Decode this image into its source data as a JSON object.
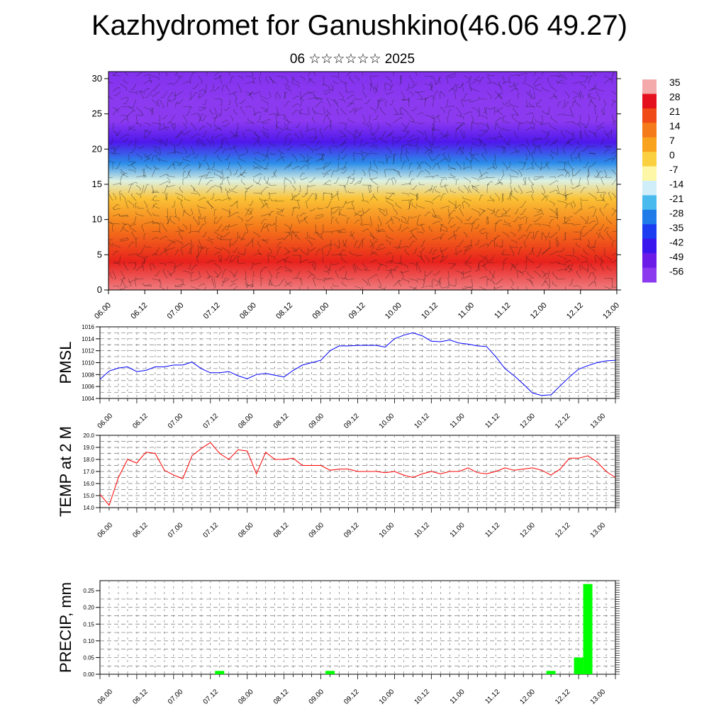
{
  "title": "Kazhydromet for Ganushkino(46.06 49.27)",
  "subtitle": "06 ☆☆☆☆☆☆ 2025",
  "time_labels": [
    "06.00",
    "06.12",
    "07.00",
    "07.12",
    "08.00",
    "08.12",
    "09.00",
    "09.12",
    "10.00",
    "10.12",
    "11.00",
    "11.12",
    "12.00",
    "12.12",
    "13.00"
  ],
  "chart_data": [
    {
      "type": "heatmap",
      "name": "upper-air-temperature",
      "x": [
        "06.00",
        "06.12",
        "07.00",
        "07.12",
        "08.00",
        "08.12",
        "09.00",
        "09.12",
        "10.00",
        "10.12",
        "11.00",
        "11.12",
        "12.00",
        "12.12",
        "13.00"
      ],
      "ylim": [
        0,
        31
      ],
      "yticks": [
        0,
        5,
        10,
        15,
        20,
        25,
        30
      ],
      "bands_by_height": [
        {
          "height": 0,
          "value": 33
        },
        {
          "height": 4,
          "value": 26
        },
        {
          "height": 9,
          "value": 14
        },
        {
          "height": 13,
          "value": 2
        },
        {
          "height": 15.5,
          "value": -12
        },
        {
          "height": 18,
          "value": -26
        },
        {
          "height": 21,
          "value": -45
        },
        {
          "height": 24,
          "value": -58
        },
        {
          "height": 27,
          "value": -56
        },
        {
          "height": 31,
          "value": -54
        }
      ],
      "colorbar": {
        "labels": [
          "35",
          "28",
          "21",
          "14",
          "7",
          "0",
          "-7",
          "-14",
          "-21",
          "-28",
          "-35",
          "-42",
          "-49",
          "-56"
        ],
        "colors": [
          "#f4aaaa",
          "#e5101e",
          "#f04a16",
          "#f57a1a",
          "#f8a21e",
          "#fbd040",
          "#fef7a8",
          "#cfeef9",
          "#49baed",
          "#1f7be8",
          "#1b3cf0",
          "#3a16ee",
          "#6a1be8",
          "#8c3af0"
        ]
      },
      "overlay": "wind barbs"
    },
    {
      "type": "line",
      "ylabel": "PMSL",
      "ylim": [
        1004,
        1016
      ],
      "yticks": [
        "1004",
        "1006",
        "1008",
        "1010",
        "1012",
        "1014",
        "1016"
      ],
      "color": "#0000ff",
      "values": [
        1007.2,
        1008.6,
        1009.1,
        1009.3,
        1008.5,
        1008.7,
        1009.3,
        1009.3,
        1009.6,
        1009.6,
        1010.1,
        1009.0,
        1008.3,
        1008.3,
        1008.5,
        1007.8,
        1007.3,
        1008.0,
        1008.2,
        1007.9,
        1007.6,
        1008.7,
        1009.6,
        1010.0,
        1010.4,
        1012.0,
        1012.8,
        1012.8,
        1012.9,
        1012.9,
        1012.9,
        1012.6,
        1014.0,
        1014.6,
        1015.0,
        1014.5,
        1013.6,
        1013.5,
        1013.8,
        1013.3,
        1013.1,
        1012.8,
        1012.7,
        1011.0,
        1009.0,
        1007.8,
        1006.4,
        1004.9,
        1004.5,
        1004.6,
        1006.1,
        1007.6,
        1008.9,
        1009.5,
        1010.0,
        1010.3,
        1010.4
      ]
    },
    {
      "type": "line",
      "ylabel": "TEMP at 2 M",
      "ylim": [
        14,
        20
      ],
      "yticks": [
        "14.0",
        "15.0",
        "16.0",
        "17.0",
        "18.0",
        "19.0",
        "20.0"
      ],
      "color": "#ff0000",
      "values": [
        15.1,
        14.2,
        16.5,
        18.0,
        17.7,
        18.6,
        18.5,
        17.1,
        16.7,
        16.4,
        18.3,
        18.9,
        19.4,
        18.5,
        18.0,
        18.8,
        18.7,
        16.8,
        18.6,
        18.0,
        18.0,
        18.1,
        17.5,
        17.5,
        17.5,
        17.1,
        17.2,
        17.2,
        17.0,
        17.0,
        17.0,
        16.9,
        17.0,
        16.7,
        16.5,
        16.8,
        17.0,
        16.8,
        17.0,
        17.0,
        17.3,
        16.9,
        16.8,
        17.0,
        17.3,
        17.1,
        17.2,
        17.3,
        17.1,
        16.7,
        17.2,
        18.1,
        18.1,
        18.3,
        17.8,
        17.0,
        16.5
      ]
    },
    {
      "type": "bar",
      "ylabel": "PRECIP, mm",
      "ylim": [
        0,
        0.28
      ],
      "yticks": [
        "0.00",
        "0.05",
        "0.10",
        "0.15",
        "0.20",
        "0.25"
      ],
      "color": "#00ff00",
      "bars": [
        {
          "x": 13,
          "value": 0.01
        },
        {
          "x": 25,
          "value": 0.01
        },
        {
          "x": 49,
          "value": 0.01
        },
        {
          "x": 52,
          "value": 0.05
        },
        {
          "x": 53,
          "value": 0.27
        }
      ]
    }
  ]
}
